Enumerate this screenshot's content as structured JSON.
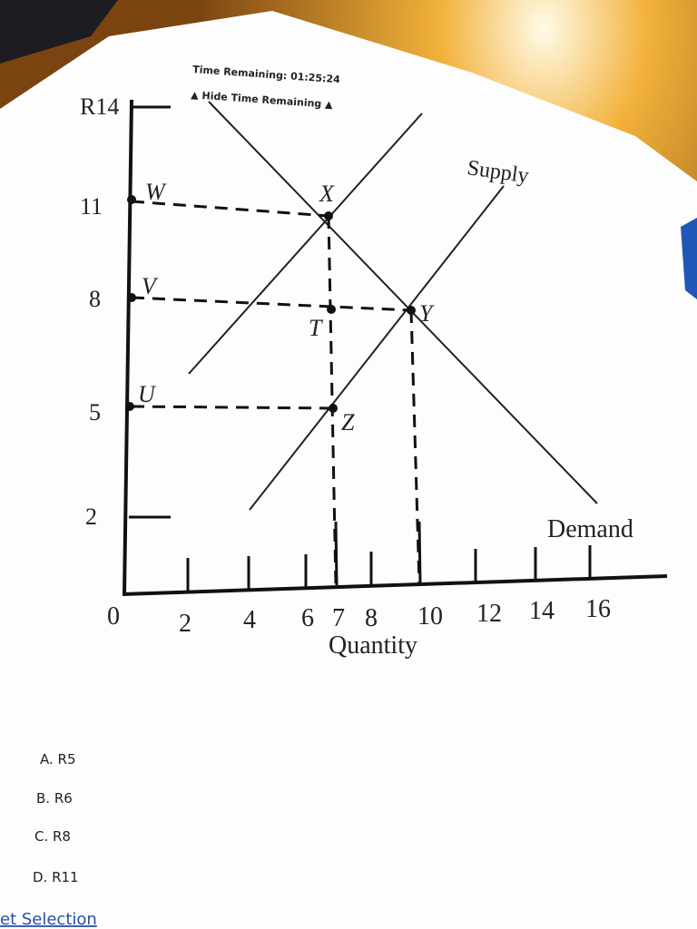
{
  "header": {
    "timer": "Time Remaining: 01:25:24",
    "toggle": "▲ Hide Time Remaining ▲"
  },
  "diagram": {
    "y_labels": [
      "R14",
      "11",
      "8",
      "5",
      "2"
    ],
    "x_labels": [
      "0",
      "2",
      "4",
      "6",
      "7",
      "8",
      "10",
      "12",
      "14",
      "16"
    ],
    "x_title": "Quantity",
    "points": [
      "W",
      "X",
      "V",
      "T",
      "Y",
      "U",
      "Z"
    ],
    "curves": [
      "Supply",
      "Demand"
    ]
  },
  "options": [
    "A. R5",
    "B. R6",
    "C. R8",
    "D. R11"
  ],
  "link": "et Selection"
}
